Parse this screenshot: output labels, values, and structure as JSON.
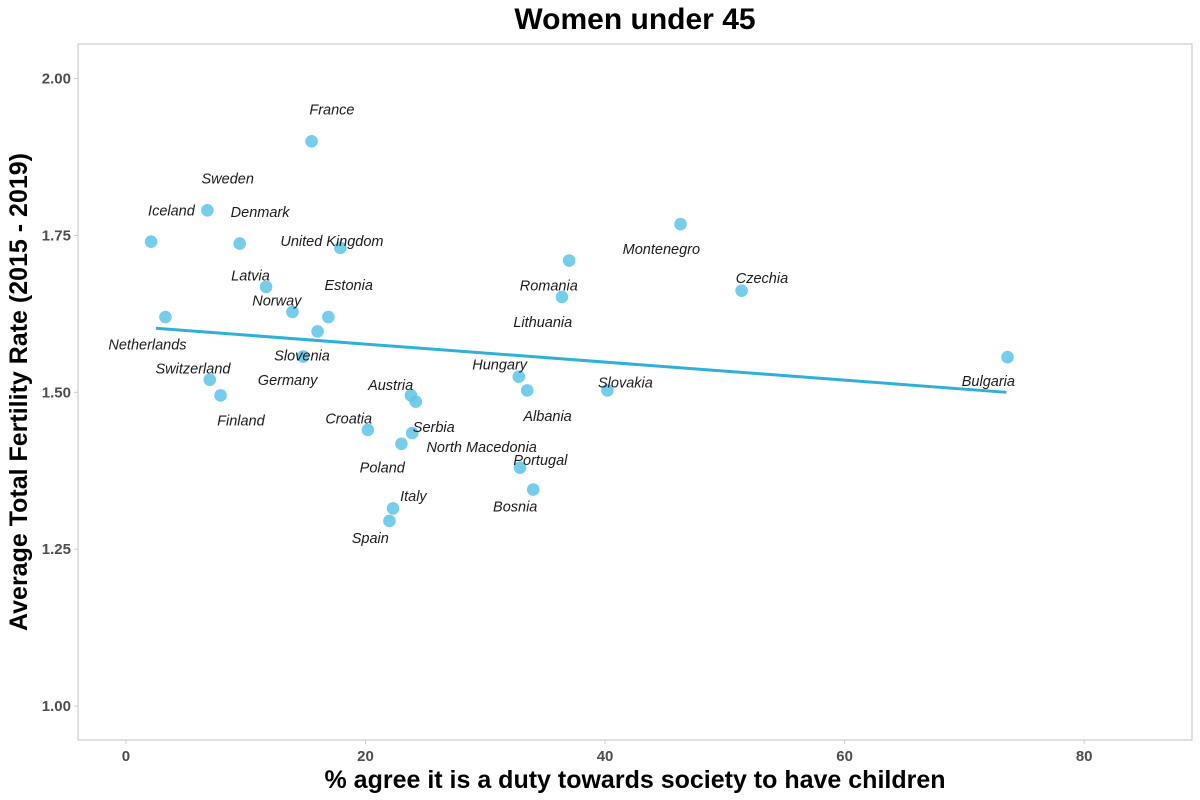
{
  "chart_data": {
    "type": "scatter",
    "title": "Women under 45",
    "xlabel": "% agree it is a duty towards society to have children",
    "ylabel": "Average Total Fertility Rate (2015 - 2019)",
    "xlim": [
      -4,
      89
    ],
    "ylim": [
      0.946,
      2.055
    ],
    "xticks": [
      0,
      20,
      40,
      60,
      80
    ],
    "xtick_labels": [
      "0",
      "20",
      "40",
      "60",
      "80"
    ],
    "yticks": [
      1.0,
      1.25,
      1.5,
      1.75,
      2.0
    ],
    "ytick_labels": [
      "1.00",
      "1.25",
      "1.50",
      "1.75",
      "2.00"
    ],
    "grid": false,
    "point_color": "#5bc4e8",
    "trend_color": "#2fb0d8",
    "trendline": {
      "x": [
        2.5,
        73.5
      ],
      "y": [
        1.602,
        1.5
      ]
    },
    "points": [
      {
        "name": "France",
        "x": 15.5,
        "y": 1.9,
        "lx": 17.2,
        "ly": 1.951,
        "anchor": "middle"
      },
      {
        "name": "Sweden",
        "x": 6.8,
        "y": 1.79,
        "lx": 8.5,
        "ly": 1.841,
        "anchor": "middle"
      },
      {
        "name": "Iceland",
        "x": 2.1,
        "y": 1.74,
        "lx": 3.8,
        "ly": 1.79,
        "anchor": "middle"
      },
      {
        "name": "Denmark",
        "x": 9.5,
        "y": 1.737,
        "lx": 11.2,
        "ly": 1.787,
        "anchor": "middle"
      },
      {
        "name": "United Kingdom",
        "x": 17.9,
        "y": 1.73,
        "lx": 17.2,
        "ly": 1.741,
        "anchor": "middle"
      },
      {
        "name": "Latvia",
        "x": 11.7,
        "y": 1.668,
        "lx": 10.4,
        "ly": 1.686,
        "anchor": "middle"
      },
      {
        "name": "Norway",
        "x": 13.9,
        "y": 1.628,
        "lx": 12.6,
        "ly": 1.646,
        "anchor": "middle"
      },
      {
        "name": "Estonia",
        "x": 16.9,
        "y": 1.62,
        "lx": 18.6,
        "ly": 1.671,
        "anchor": "middle"
      },
      {
        "name": "Netherlands",
        "x": 3.3,
        "y": 1.62,
        "lx": 1.8,
        "ly": 1.576,
        "anchor": "middle"
      },
      {
        "name": "Slovenia",
        "x": 16.0,
        "y": 1.597,
        "lx": 14.7,
        "ly": 1.559,
        "anchor": "middle"
      },
      {
        "name": "Germany",
        "x": 14.8,
        "y": 1.557,
        "lx": 13.5,
        "ly": 1.52,
        "anchor": "middle"
      },
      {
        "name": "Switzerland",
        "x": 7.0,
        "y": 1.52,
        "lx": 5.6,
        "ly": 1.538,
        "anchor": "middle"
      },
      {
        "name": "Finland",
        "x": 7.9,
        "y": 1.495,
        "lx": 9.6,
        "ly": 1.455,
        "anchor": "middle"
      },
      {
        "name": "Austria",
        "x": 23.8,
        "y": 1.495,
        "lx": 22.1,
        "ly": 1.512,
        "anchor": "middle"
      },
      {
        "name": "Serbia",
        "x": 24.2,
        "y": 1.485,
        "lx": 25.7,
        "ly": 1.445,
        "anchor": "middle"
      },
      {
        "name": "Croatia",
        "x": 20.2,
        "y": 1.44,
        "lx": 18.6,
        "ly": 1.458,
        "anchor": "middle"
      },
      {
        "name": "North Macedonia",
        "x": 23.9,
        "y": 1.435,
        "lx": 29.7,
        "ly": 1.413,
        "anchor": "middle"
      },
      {
        "name": "Poland",
        "x": 23.0,
        "y": 1.418,
        "lx": 21.4,
        "ly": 1.38,
        "anchor": "middle"
      },
      {
        "name": "Hungary",
        "x": 32.8,
        "y": 1.525,
        "lx": 31.2,
        "ly": 1.544,
        "anchor": "middle"
      },
      {
        "name": "Albania",
        "x": 33.5,
        "y": 1.503,
        "lx": 35.2,
        "ly": 1.462,
        "anchor": "middle"
      },
      {
        "name": "Slovakia",
        "x": 40.2,
        "y": 1.503,
        "lx": 41.7,
        "ly": 1.516,
        "anchor": "middle"
      },
      {
        "name": "Portugal",
        "x": 32.9,
        "y": 1.38,
        "lx": 34.6,
        "ly": 1.392,
        "anchor": "middle"
      },
      {
        "name": "Bosnia",
        "x": 34.0,
        "y": 1.345,
        "lx": 32.5,
        "ly": 1.318,
        "anchor": "middle"
      },
      {
        "name": "Italy",
        "x": 22.3,
        "y": 1.315,
        "lx": 24.0,
        "ly": 1.335,
        "anchor": "middle"
      },
      {
        "name": "Spain",
        "x": 22.0,
        "y": 1.295,
        "lx": 20.4,
        "ly": 1.268,
        "anchor": "middle"
      },
      {
        "name": "Romania",
        "x": 37.0,
        "y": 1.71,
        "lx": 35.3,
        "ly": 1.67,
        "anchor": "middle"
      },
      {
        "name": "Lithuania",
        "x": 36.4,
        "y": 1.652,
        "lx": 34.8,
        "ly": 1.612,
        "anchor": "middle"
      },
      {
        "name": "Montenegro",
        "x": 46.3,
        "y": 1.768,
        "lx": 44.7,
        "ly": 1.728,
        "anchor": "middle"
      },
      {
        "name": "Czechia",
        "x": 51.4,
        "y": 1.662,
        "lx": 53.1,
        "ly": 1.682,
        "anchor": "middle"
      },
      {
        "name": "Bulgaria",
        "x": 73.6,
        "y": 1.556,
        "lx": 72.0,
        "ly": 1.518,
        "anchor": "middle"
      }
    ]
  }
}
